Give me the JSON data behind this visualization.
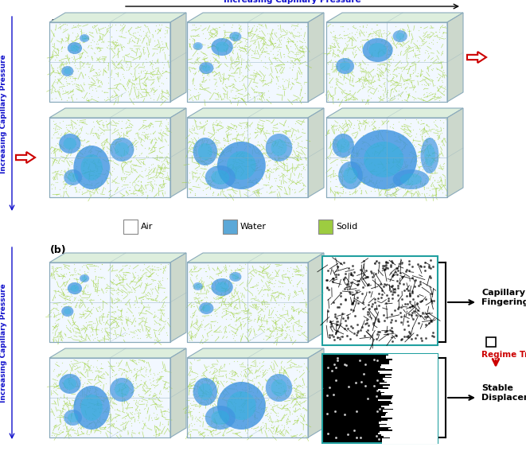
{
  "title_top": "Increasing Capillary Pressure",
  "label_a": "(a)",
  "label_b": "(b)",
  "legend_items": [
    {
      "label": "Air",
      "color": "#ffffff",
      "edgecolor": "#888888"
    },
    {
      "label": "Water",
      "color": "#5ba8d8",
      "edgecolor": "#888888"
    },
    {
      "label": "Solid",
      "color": "#9dcc40",
      "edgecolor": "#888888"
    }
  ],
  "left_label_a": "Increasing Capillary Pressure",
  "left_label_b": "Increasing Capillary Pressure",
  "capillary_fingering_label": "Capillary\nFingering",
  "regime_transition_label": "Regime Transition",
  "stable_displacement_label": "Stable\nDisplacement",
  "bg_color": "#ffffff",
  "arrow_color_red": "#cc0000",
  "blue_title_color": "#1010cc",
  "blue_left_color": "#1010cc",
  "box_edge_color": "#8aaabb",
  "box_top_color": "#ddeedd",
  "box_right_color": "#ccd8cc",
  "solid_color": [
    0.62,
    0.82,
    0.22
  ],
  "water_color": [
    0.25,
    0.58,
    0.88
  ],
  "water_color2": [
    0.15,
    0.72,
    0.85
  ],
  "air_color": [
    1.0,
    1.0,
    1.0
  ]
}
